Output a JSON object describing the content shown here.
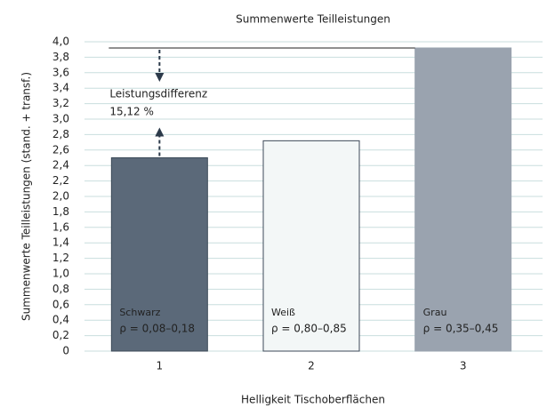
{
  "chart_data": {
    "type": "bar",
    "title": "Summenwerte Teilleistungen",
    "x_label": "Helligkeit Tischoberflächen",
    "y_label": "Summenwerte Teilleistungen (stand. + transf.)",
    "categories": [
      "1",
      "2",
      "3"
    ],
    "values": [
      2.5,
      2.72,
      3.92
    ],
    "colors": [
      "#5b6979",
      "#f3f7f7",
      "#9aa3af"
    ],
    "bar_labels": [
      {
        "name": "Schwarz",
        "rho": "ρ = 0,08–0,18"
      },
      {
        "name": "Weiß",
        "rho": "ρ = 0,80–0,85"
      },
      {
        "name": "Grau",
        "rho": "ρ = 0,35–0,45"
      }
    ],
    "annotation": {
      "label": "Leistungsdifferenz",
      "value_text": "15,12 %"
    },
    "ylim": [
      0,
      4
    ],
    "yticks": [
      0,
      {
        "value": 0.2,
        "label": "0,2"
      },
      {
        "value": 0.4,
        "label": "0,4"
      },
      {
        "value": 0.6,
        "label": "0,6"
      },
      {
        "value": 0.8,
        "label": "0,8"
      },
      {
        "value": 1,
        "label": "1,0"
      },
      {
        "value": 1.2,
        "label": "1,2"
      },
      {
        "value": 1.4,
        "label": "1,4"
      },
      {
        "value": 1.6,
        "label": "1,6"
      },
      {
        "value": 1.8,
        "label": "1,8"
      },
      {
        "value": 2,
        "label": "2,0"
      },
      {
        "value": 2.2,
        "label": "2,2"
      },
      {
        "value": 2.4,
        "label": "2,4"
      },
      {
        "value": 2.6,
        "label": "2,6"
      },
      {
        "value": 2.8,
        "label": "2,8"
      },
      {
        "value": 3,
        "label": "3,0"
      },
      {
        "value": 3.2,
        "label": "3,2"
      },
      {
        "value": 3.4,
        "label": "3,4"
      },
      {
        "value": 3.6,
        "label": "3,6"
      },
      {
        "value": 3.8,
        "label": "3,8"
      },
      {
        "value": 4,
        "label": "4,0"
      }
    ],
    "grid": true
  }
}
